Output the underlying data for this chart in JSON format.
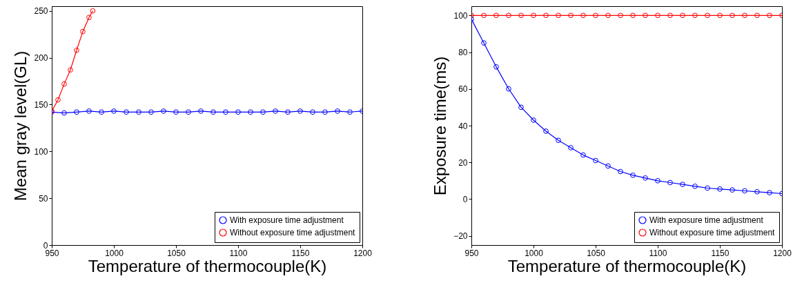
{
  "chart_data": [
    {
      "type": "line",
      "xlabel": "Temperature of thermocouple(K)",
      "ylabel": "Mean gray level(GL)",
      "xlim": [
        950,
        1200
      ],
      "xticks": [
        950,
        1000,
        1050,
        1100,
        1150,
        1200
      ],
      "ylim": [
        0,
        255
      ],
      "yticks": [
        0,
        50,
        100,
        150,
        200,
        250
      ],
      "grid": false,
      "legend": "bottom right",
      "marker": "circle",
      "line_style": "solid",
      "series": [
        {
          "name": "With exposure time adjustment",
          "color": "#0000ff",
          "x": [
            950,
            960,
            970,
            980,
            990,
            1000,
            1010,
            1020,
            1030,
            1040,
            1050,
            1060,
            1070,
            1080,
            1090,
            1100,
            1110,
            1120,
            1130,
            1140,
            1150,
            1160,
            1170,
            1180,
            1190,
            1200
          ],
          "values": [
            142,
            141,
            142,
            143,
            142,
            143,
            142,
            142,
            142,
            143,
            142,
            142,
            143,
            142,
            142,
            142,
            142,
            142,
            143,
            142,
            143,
            142,
            142,
            143,
            142,
            143
          ]
        },
        {
          "name": "Without exposure time adjustment",
          "color": "#ff0000",
          "x": [
            950,
            955,
            960,
            965,
            970,
            975,
            980,
            983
          ],
          "values": [
            143,
            155,
            172,
            187,
            208,
            228,
            243,
            250
          ]
        }
      ]
    },
    {
      "type": "line",
      "xlabel": "Temperature of thermocouple(K)",
      "ylabel": "Exposure time(ms)",
      "xlim": [
        950,
        1200
      ],
      "xticks": [
        950,
        1000,
        1050,
        1100,
        1150,
        1200
      ],
      "ylim": [
        -25,
        105
      ],
      "yticks": [
        -20,
        0,
        20,
        40,
        60,
        80,
        100
      ],
      "grid": false,
      "legend": "bottom right",
      "marker": "circle",
      "line_style": "solid",
      "series": [
        {
          "name": "With exposure time adjustment",
          "color": "#0000ff",
          "x": [
            950,
            960,
            970,
            980,
            990,
            1000,
            1010,
            1020,
            1030,
            1040,
            1050,
            1060,
            1070,
            1080,
            1090,
            1100,
            1110,
            1120,
            1130,
            1140,
            1150,
            1160,
            1170,
            1180,
            1190,
            1200
          ],
          "values": [
            98,
            85,
            72,
            60,
            50,
            43,
            37,
            32,
            28,
            24,
            21,
            18,
            15,
            13,
            11.5,
            10,
            9,
            8,
            7,
            6,
            5.5,
            5,
            4.5,
            4,
            3.5,
            3
          ]
        },
        {
          "name": "Without exposure time adjustment",
          "color": "#ff0000",
          "x": [
            950,
            960,
            970,
            980,
            990,
            1000,
            1010,
            1020,
            1030,
            1040,
            1050,
            1060,
            1070,
            1080,
            1090,
            1100,
            1110,
            1120,
            1130,
            1140,
            1150,
            1160,
            1170,
            1180,
            1190,
            1200
          ],
          "values": [
            100,
            100,
            100,
            100,
            100,
            100,
            100,
            100,
            100,
            100,
            100,
            100,
            100,
            100,
            100,
            100,
            100,
            100,
            100,
            100,
            100,
            100,
            100,
            100,
            100,
            100
          ]
        }
      ]
    }
  ]
}
